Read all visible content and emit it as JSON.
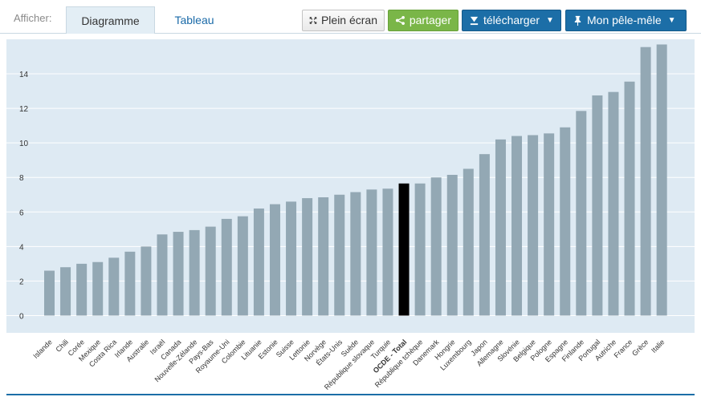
{
  "toolbar": {
    "show_label": "Afficher:",
    "tabs": [
      {
        "label": "Diagramme",
        "active": true
      },
      {
        "label": "Tableau",
        "active": false
      }
    ],
    "fullscreen_label": "Plein écran",
    "share_label": "partager",
    "download_label": "télécharger",
    "board_label": "Mon pêle-mêle"
  },
  "colors": {
    "bar": "#93a8b4",
    "highlight_bar": "#000000",
    "plot_background": "#deeaf3",
    "gridline": "#ffffff",
    "share_button": "#7ab648",
    "action_button": "#1c6ea7"
  },
  "chart_data": {
    "type": "bar",
    "categories": [
      "Islande",
      "Chili",
      "Corée",
      "Mexique",
      "Costa Rica",
      "Irlande",
      "Australie",
      "Israël",
      "Canada",
      "Nouvelle-Zélande",
      "Pays-Bas",
      "Royaume-Uni",
      "Colombie",
      "Lituanie",
      "Estonie",
      "Suisse",
      "Lettonie",
      "Norvège",
      "États-Unis",
      "Suède",
      "République slovaque",
      "Turquie",
      "OCDE - Total",
      "République tchèque",
      "Danemark",
      "Hongrie",
      "Luxembourg",
      "Japon",
      "Allemagne",
      "Slovénie",
      "Belgique",
      "Pologne",
      "Espagne",
      "Finlande",
      "Portugal",
      "Autriche",
      "France",
      "Grèce",
      "Italie"
    ],
    "values": [
      2.6,
      2.8,
      3.0,
      3.1,
      3.35,
      3.7,
      4.0,
      4.7,
      4.85,
      4.95,
      5.15,
      5.6,
      5.75,
      6.2,
      6.45,
      6.6,
      6.8,
      6.85,
      7.0,
      7.15,
      7.3,
      7.35,
      7.65,
      7.65,
      8.0,
      8.15,
      8.5,
      9.35,
      10.2,
      10.4,
      10.45,
      10.55,
      10.9,
      11.85,
      12.75,
      12.95,
      13.55,
      15.55,
      15.7
    ],
    "highlight": "OCDE - Total",
    "yticks": [
      0,
      2,
      4,
      6,
      8,
      10,
      12,
      14
    ],
    "ylim": [
      -1,
      16
    ],
    "grid": true,
    "title": "",
    "xlabel": "",
    "ylabel": ""
  }
}
